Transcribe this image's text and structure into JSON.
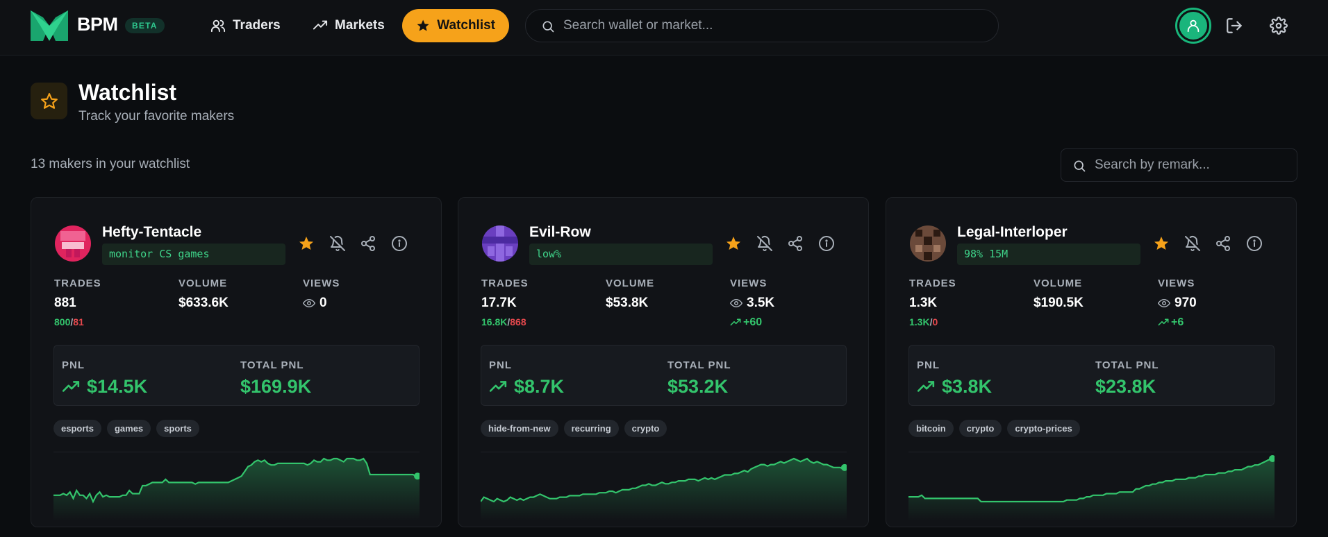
{
  "brand": {
    "name": "BPM",
    "badge": "BETA"
  },
  "nav": [
    {
      "label": "Traders",
      "icon": "users-icon"
    },
    {
      "label": "Markets",
      "icon": "trending-up-icon"
    },
    {
      "label": "Watchlist",
      "icon": "star-icon",
      "active": true
    }
  ],
  "search": {
    "placeholder": "Search wallet or market..."
  },
  "page": {
    "title": "Watchlist",
    "subtitle": "Track your favorite makers",
    "count_text": "13 makers in your watchlist",
    "remark_search_placeholder": "Search by remark..."
  },
  "labels": {
    "trades": "TRADES",
    "volume": "VOLUME",
    "views": "VIEWS",
    "pnl": "PNL",
    "total_pnl": "TOTAL PNL"
  },
  "colors": {
    "accent": "#f6a21a",
    "positive": "#33c46c",
    "negative": "#e5484d",
    "brand_green": "#1ab57c"
  },
  "cards": [
    {
      "name": "Hefty-Tentacle",
      "remark": "monitor CS games",
      "trades": "881",
      "wins": "800",
      "losses": "81",
      "volume": "$633.6K",
      "views": "0",
      "views_delta": "",
      "pnl": "$14.5K",
      "total_pnl": "$169.9K",
      "tags": [
        "esports",
        "games",
        "sports"
      ],
      "avatar_color": "#e0245e",
      "series": [
        30,
        30,
        30,
        31,
        30,
        32,
        28,
        33,
        30,
        30,
        28,
        31,
        26,
        30,
        32,
        29,
        30,
        29,
        29,
        29,
        29,
        30,
        30,
        33,
        31,
        31,
        31,
        36,
        36,
        37,
        38,
        38,
        38,
        38,
        40,
        38,
        38,
        38,
        38,
        38,
        38,
        38,
        38,
        37,
        38,
        38,
        38,
        38,
        38,
        38,
        38,
        38,
        38,
        38,
        39,
        40,
        41,
        42,
        45,
        48,
        49,
        51,
        52,
        51,
        52,
        50,
        49,
        49,
        50,
        50,
        50,
        50,
        50,
        50,
        50,
        50,
        50,
        49,
        50,
        52,
        51,
        51,
        53,
        52,
        52,
        53,
        53,
        52,
        51,
        53,
        53,
        53,
        52,
        52,
        53,
        50,
        43,
        43,
        43,
        43,
        43,
        43,
        43,
        43,
        43,
        43,
        43,
        43,
        43,
        43,
        42,
        42
      ]
    },
    {
      "name": "Evil-Row",
      "remark": "low%",
      "trades": "17.7K",
      "wins": "16.8K",
      "losses": "868",
      "volume": "$53.8K",
      "views": "3.5K",
      "views_delta": "+60",
      "pnl": "$8.7K",
      "total_pnl": "$53.2K",
      "tags": [
        "hide-from-new",
        "recurring",
        "crypto"
      ],
      "avatar_color": "#6a3fc0",
      "series": [
        24,
        27,
        26,
        25,
        24,
        26,
        25,
        24,
        25,
        27,
        26,
        25,
        26,
        25,
        26,
        27,
        27,
        28,
        29,
        28,
        27,
        26,
        26,
        26,
        27,
        27,
        27,
        28,
        28,
        28,
        28,
        29,
        29,
        29,
        29,
        29,
        30,
        30,
        30,
        31,
        31,
        30,
        31,
        32,
        32,
        32,
        33,
        33,
        34,
        35,
        35,
        36,
        35,
        35,
        36,
        37,
        36,
        36,
        37,
        37,
        38,
        38,
        38,
        39,
        39,
        39,
        38,
        39,
        40,
        39,
        40,
        39,
        40,
        41,
        42,
        42,
        42,
        43,
        43,
        44,
        45,
        44,
        46,
        47,
        48,
        49,
        49,
        48,
        49,
        49,
        50,
        51,
        50,
        51,
        52,
        53,
        52,
        51,
        52,
        53,
        51,
        50,
        51,
        50,
        49,
        49,
        48,
        47,
        47,
        47,
        46,
        47
      ]
    },
    {
      "name": "Legal-Interloper",
      "remark": "98% 15M",
      "trades": "1.3K",
      "wins": "1.3K",
      "losses": "0",
      "volume": "$190.5K",
      "views": "970",
      "views_delta": "+6",
      "pnl": "$3.8K",
      "total_pnl": "$23.8K",
      "tags": [
        "bitcoin",
        "crypto",
        "crypto-prices"
      ],
      "avatar_color": "#6b4a3a",
      "series": [
        28,
        28,
        28,
        28,
        29,
        27,
        27,
        27,
        27,
        27,
        27,
        27,
        27,
        27,
        27,
        27,
        27,
        27,
        27,
        27,
        27,
        27,
        25,
        25,
        25,
        25,
        25,
        25,
        25,
        25,
        25,
        25,
        25,
        25,
        25,
        25,
        25,
        25,
        25,
        25,
        25,
        25,
        25,
        25,
        25,
        25,
        25,
        25,
        26,
        26,
        26,
        26,
        27,
        27,
        28,
        28,
        29,
        29,
        29,
        29,
        30,
        30,
        30,
        30,
        31,
        31,
        31,
        31,
        31,
        33,
        33,
        34,
        35,
        35,
        36,
        36,
        37,
        37,
        38,
        38,
        38,
        39,
        39,
        39,
        39,
        40,
        40,
        40,
        41,
        41,
        42,
        42,
        42,
        42,
        43,
        43,
        43,
        44,
        44,
        45,
        45,
        45,
        46,
        47,
        47,
        48,
        48,
        49,
        50,
        51,
        52,
        52
      ]
    }
  ]
}
